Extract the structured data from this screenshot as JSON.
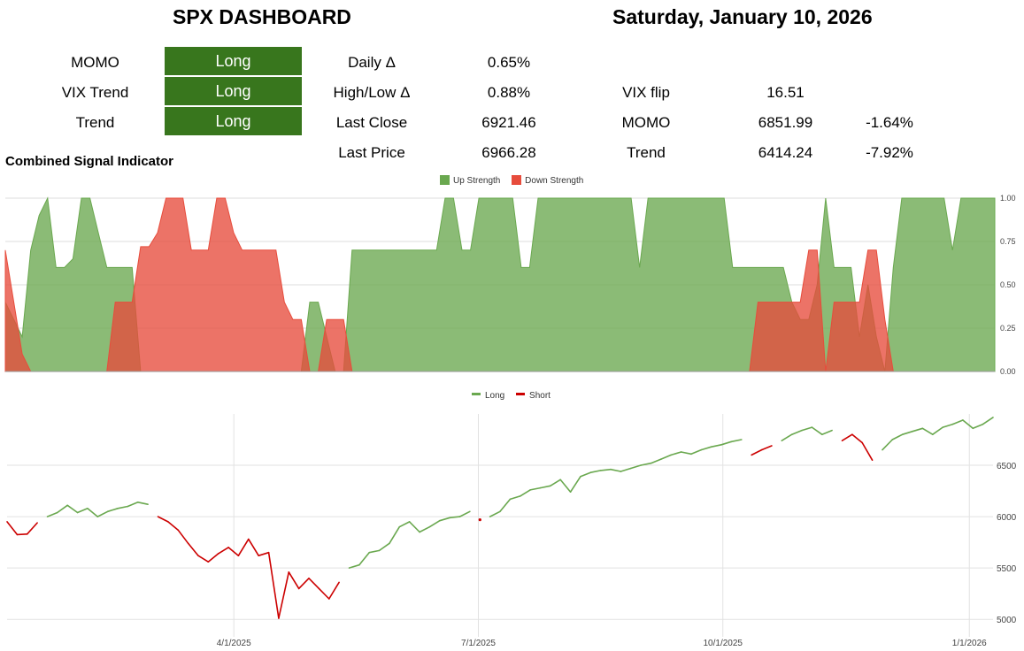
{
  "header": {
    "title": "SPX DASHBOARD",
    "date": "Saturday, January 10, 2026"
  },
  "signals": [
    {
      "label": "MOMO",
      "value": "Long"
    },
    {
      "label": "VIX Trend",
      "value": "Long"
    },
    {
      "label": "Trend",
      "value": "Long"
    }
  ],
  "stats": {
    "daily_delta_label": "Daily Δ",
    "daily_delta": "0.65%",
    "highlow_delta_label": "High/Low Δ",
    "highlow_delta": "0.88%",
    "last_close_label": "Last Close",
    "last_close": "6921.46",
    "last_price_label": "Last Price",
    "last_price": "6966.28",
    "vix_flip_label": "VIX flip",
    "vix_flip": "16.51",
    "momo_label": "MOMO",
    "momo_level": "6851.99",
    "momo_pct": "-1.64%",
    "trend_label": "Trend",
    "trend_level": "6414.24",
    "trend_pct": "-7.92%"
  },
  "colors": {
    "signal_bg": "#38761d",
    "up": "#6aa84f",
    "down": "#e74c3c",
    "long_line": "#6aa84f",
    "short_line": "#cc0000"
  },
  "chart_data": [
    {
      "type": "area",
      "title": "Combined Signal Indicator",
      "series": [
        {
          "name": "Up Strength",
          "color": "#6aa84f",
          "values": [
            0.4,
            0.3,
            0.2,
            0.7,
            0.9,
            1.0,
            0.6,
            0.6,
            0.65,
            1.0,
            1.0,
            0.8,
            0.6,
            0.6,
            0.6,
            0.6,
            0.0,
            0.0,
            0.0,
            0.0,
            0.0,
            0.0,
            0.0,
            0.0,
            0.0,
            0.0,
            0.0,
            0.0,
            0.0,
            0.0,
            0.0,
            0.0,
            0.0,
            0.0,
            0.0,
            0.0,
            0.4,
            0.4,
            0.2,
            0.0,
            0.0,
            0.7,
            0.7,
            0.7,
            0.7,
            0.7,
            0.7,
            0.7,
            0.7,
            0.7,
            0.7,
            0.7,
            1.0,
            1.0,
            0.7,
            0.7,
            1.0,
            1.0,
            1.0,
            1.0,
            1.0,
            0.6,
            0.6,
            1.0,
            1.0,
            1.0,
            1.0,
            1.0,
            1.0,
            1.0,
            1.0,
            1.0,
            1.0,
            1.0,
            1.0,
            0.6,
            1.0,
            1.0,
            1.0,
            1.0,
            1.0,
            1.0,
            1.0,
            1.0,
            1.0,
            1.0,
            0.6,
            0.6,
            0.6,
            0.6,
            0.6,
            0.6,
            0.6,
            0.4,
            0.3,
            0.3,
            0.5,
            1.0,
            0.6,
            0.6,
            0.6,
            0.2,
            0.5,
            0.2,
            0.0,
            0.6,
            1.0,
            1.0,
            1.0,
            1.0,
            1.0,
            1.0,
            0.7,
            1.0,
            1.0,
            1.0,
            1.0,
            1.0
          ]
        },
        {
          "name": "Down Strength",
          "color": "#e74c3c",
          "values": [
            0.7,
            0.4,
            0.1,
            0.0,
            0.0,
            0.0,
            0.0,
            0.0,
            0.0,
            0.0,
            0.0,
            0.0,
            0.0,
            0.4,
            0.4,
            0.4,
            0.72,
            0.72,
            0.8,
            1.0,
            1.0,
            1.0,
            0.7,
            0.7,
            0.7,
            1.0,
            1.0,
            0.8,
            0.7,
            0.7,
            0.7,
            0.7,
            0.7,
            0.4,
            0.3,
            0.3,
            0.0,
            0.0,
            0.3,
            0.3,
            0.3,
            0.0,
            0.0,
            0.0,
            0.0,
            0.0,
            0.0,
            0.0,
            0.0,
            0.0,
            0.0,
            0.0,
            0.0,
            0.0,
            0.0,
            0.0,
            0.0,
            0.0,
            0.0,
            0.0,
            0.0,
            0.0,
            0.0,
            0.0,
            0.0,
            0.0,
            0.0,
            0.0,
            0.0,
            0.0,
            0.0,
            0.0,
            0.0,
            0.0,
            0.0,
            0.0,
            0.0,
            0.0,
            0.0,
            0.0,
            0.0,
            0.0,
            0.0,
            0.0,
            0.0,
            0.0,
            0.0,
            0.0,
            0.0,
            0.4,
            0.4,
            0.4,
            0.4,
            0.4,
            0.4,
            0.7,
            0.7,
            0.0,
            0.4,
            0.4,
            0.4,
            0.4,
            0.7,
            0.7,
            0.3,
            0.0,
            0.0,
            0.0,
            0.0,
            0.0,
            0.0,
            0.0,
            0.0,
            0.0,
            0.0,
            0.0,
            0.0,
            0.0
          ]
        }
      ],
      "ylim": [
        0,
        1
      ],
      "yticks": [
        "1.00",
        "0.75",
        "0.50",
        "0.25",
        "0.00"
      ],
      "legend_position": "top"
    },
    {
      "type": "line",
      "series": [
        {
          "name": "Long"
        },
        {
          "name": "Short"
        }
      ],
      "ylim": [
        4950,
        7000
      ],
      "yticks": [
        "6500",
        "6000",
        "5500",
        "5000"
      ],
      "xticks": [
        "4/1/2025",
        "7/1/2025",
        "10/1/2025",
        "1/1/2026"
      ],
      "legend_position": "top",
      "points": [
        [
          5950,
          "S"
        ],
        [
          5825,
          "S"
        ],
        [
          5830,
          "S"
        ],
        [
          5940,
          "S"
        ],
        [
          6000,
          "L"
        ],
        [
          6040,
          "L"
        ],
        [
          6110,
          "L"
        ],
        [
          6040,
          "L"
        ],
        [
          6080,
          "L"
        ],
        [
          6000,
          "L"
        ],
        [
          6050,
          "L"
        ],
        [
          6080,
          "L"
        ],
        [
          6100,
          "L"
        ],
        [
          6140,
          "L"
        ],
        [
          6120,
          "L"
        ],
        [
          6000,
          "S"
        ],
        [
          5950,
          "S"
        ],
        [
          5870,
          "S"
        ],
        [
          5740,
          "S"
        ],
        [
          5620,
          "S"
        ],
        [
          5560,
          "S"
        ],
        [
          5640,
          "S"
        ],
        [
          5700,
          "S"
        ],
        [
          5620,
          "S"
        ],
        [
          5780,
          "S"
        ],
        [
          5620,
          "S"
        ],
        [
          5650,
          "S"
        ],
        [
          5010,
          "S"
        ],
        [
          5460,
          "S"
        ],
        [
          5300,
          "S"
        ],
        [
          5400,
          "S"
        ],
        [
          5300,
          "S"
        ],
        [
          5200,
          "S"
        ],
        [
          5360,
          "S"
        ],
        [
          5500,
          "L"
        ],
        [
          5530,
          "L"
        ],
        [
          5650,
          "L"
        ],
        [
          5670,
          "L"
        ],
        [
          5740,
          "L"
        ],
        [
          5900,
          "L"
        ],
        [
          5950,
          "L"
        ],
        [
          5850,
          "L"
        ],
        [
          5900,
          "L"
        ],
        [
          5960,
          "L"
        ],
        [
          5990,
          "L"
        ],
        [
          6000,
          "L"
        ],
        [
          6050,
          "L"
        ],
        [
          5970,
          "S"
        ],
        [
          6000,
          "L"
        ],
        [
          6050,
          "L"
        ],
        [
          6170,
          "L"
        ],
        [
          6200,
          "L"
        ],
        [
          6260,
          "L"
        ],
        [
          6280,
          "L"
        ],
        [
          6300,
          "L"
        ],
        [
          6360,
          "L"
        ],
        [
          6240,
          "L"
        ],
        [
          6390,
          "L"
        ],
        [
          6430,
          "L"
        ],
        [
          6450,
          "L"
        ],
        [
          6460,
          "L"
        ],
        [
          6440,
          "L"
        ],
        [
          6470,
          "L"
        ],
        [
          6500,
          "L"
        ],
        [
          6520,
          "L"
        ],
        [
          6560,
          "L"
        ],
        [
          6600,
          "L"
        ],
        [
          6630,
          "L"
        ],
        [
          6610,
          "L"
        ],
        [
          6650,
          "L"
        ],
        [
          6680,
          "L"
        ],
        [
          6700,
          "L"
        ],
        [
          6730,
          "L"
        ],
        [
          6750,
          "L"
        ],
        [
          6600,
          "S"
        ],
        [
          6650,
          "S"
        ],
        [
          6690,
          "S"
        ],
        [
          6740,
          "L"
        ],
        [
          6800,
          "L"
        ],
        [
          6840,
          "L"
        ],
        [
          6870,
          "L"
        ],
        [
          6800,
          "L"
        ],
        [
          6840,
          "L"
        ],
        [
          6740,
          "S"
        ],
        [
          6800,
          "S"
        ],
        [
          6720,
          "S"
        ],
        [
          6550,
          "S"
        ],
        [
          6650,
          "L"
        ],
        [
          6750,
          "L"
        ],
        [
          6800,
          "L"
        ],
        [
          6830,
          "L"
        ],
        [
          6860,
          "L"
        ],
        [
          6800,
          "L"
        ],
        [
          6870,
          "L"
        ],
        [
          6900,
          "L"
        ],
        [
          6940,
          "L"
        ],
        [
          6860,
          "L"
        ],
        [
          6900,
          "L"
        ],
        [
          6966,
          "L"
        ]
      ]
    }
  ],
  "chart_labels": {
    "signal_title": "Combined Signal Indicator",
    "up_legend": "Up Strength",
    "down_legend": "Down Strength",
    "long_legend": "Long",
    "short_legend": "Short"
  }
}
